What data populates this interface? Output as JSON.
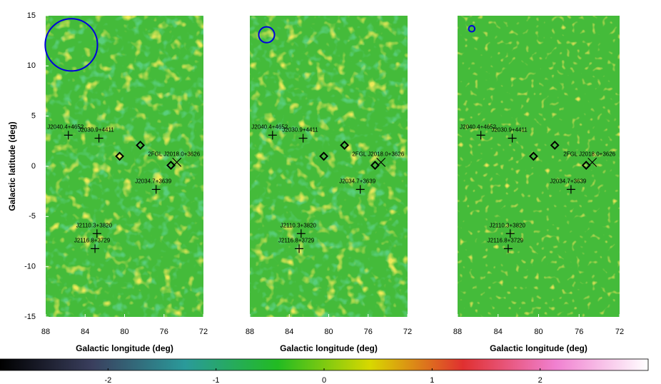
{
  "chart_data": [
    {
      "type": "map",
      "xlabel": "Galactic longitude (deg)",
      "ylabel": "Galactic latitude (deg)",
      "xlim": [
        88,
        72
      ],
      "ylim": [
        -15,
        15
      ],
      "xticks": [
        88,
        84,
        80,
        76,
        72
      ],
      "yticks": [
        -15,
        -10,
        -5,
        0,
        5,
        10,
        15
      ],
      "beam": {
        "l": 85.4,
        "b": 12.1,
        "radius": 2.65,
        "color": "#0000dd"
      },
      "sources": [
        {
          "name": "J2040.4+4652",
          "l": 85.7,
          "b": 3.1,
          "marker": "plus"
        },
        {
          "name": "J2030.9+4411",
          "l": 82.6,
          "b": 2.8,
          "marker": "plus"
        },
        {
          "l": 80.5,
          "b": 1.0,
          "marker": "diamond"
        },
        {
          "l": 78.4,
          "b": 2.1,
          "marker": "diamond"
        },
        {
          "l": 75.3,
          "b": 0.1,
          "marker": "diamond"
        },
        {
          "name": "2FGL J2018.0+3626",
          "l": 74.7,
          "b": 0.4,
          "marker": "x"
        },
        {
          "name": "J2034.7+3639",
          "l": 76.8,
          "b": -2.3,
          "marker": "plus"
        },
        {
          "name": "J2110.3+3820",
          "l": 82.8,
          "b": -6.7,
          "marker": "plus"
        },
        {
          "name": "J2116.8+3729",
          "l": 83.0,
          "b": -8.2,
          "marker": "plus"
        }
      ]
    },
    {
      "type": "map",
      "xlabel": "Galactic longitude (deg)",
      "xlim": [
        88,
        72
      ],
      "xticks": [
        88,
        84,
        80,
        76,
        72
      ],
      "ylim": [
        -15,
        15
      ],
      "beam": {
        "l": 86.3,
        "b": 13.1,
        "radius": 0.8,
        "color": "#0000dd"
      },
      "sources": [
        {
          "name": "J2040.4+4652",
          "l": 85.7,
          "b": 3.1,
          "marker": "plus"
        },
        {
          "name": "J2030.9+4411",
          "l": 82.6,
          "b": 2.8,
          "marker": "plus"
        },
        {
          "l": 80.5,
          "b": 1.0,
          "marker": "diamond"
        },
        {
          "l": 78.4,
          "b": 2.1,
          "marker": "diamond"
        },
        {
          "l": 75.3,
          "b": 0.1,
          "marker": "diamond"
        },
        {
          "name": "2FGL J2018.0+3626",
          "l": 74.7,
          "b": 0.4,
          "marker": "x"
        },
        {
          "name": "J2034.7+3639",
          "l": 76.8,
          "b": -2.3,
          "marker": "plus"
        },
        {
          "name": "J2110.3+3820",
          "l": 82.8,
          "b": -6.7,
          "marker": "plus"
        },
        {
          "name": "J2116.8+3729",
          "l": 83.0,
          "b": -8.2,
          "marker": "plus"
        }
      ]
    },
    {
      "type": "map",
      "xlabel": "Galactic longitude (deg)",
      "xlim": [
        88,
        72
      ],
      "xticks": [
        88,
        84,
        80,
        76,
        72
      ],
      "ylim": [
        -15,
        15
      ],
      "beam": {
        "l": 86.6,
        "b": 13.7,
        "radius": 0.3,
        "color": "#0000dd"
      },
      "sources": [
        {
          "name": "J2040.4+4652",
          "l": 85.7,
          "b": 3.1,
          "marker": "plus"
        },
        {
          "name": "J2030.9+4411",
          "l": 82.6,
          "b": 2.8,
          "marker": "plus"
        },
        {
          "l": 80.5,
          "b": 1.0,
          "marker": "diamond"
        },
        {
          "l": 78.4,
          "b": 2.1,
          "marker": "diamond"
        },
        {
          "l": 75.3,
          "b": 0.1,
          "marker": "diamond"
        },
        {
          "name": "2FGL J2018.0+3626",
          "l": 74.7,
          "b": 0.4,
          "marker": "x"
        },
        {
          "name": "J2034.7+3639",
          "l": 76.8,
          "b": -2.3,
          "marker": "plus"
        },
        {
          "name": "J2110.3+3820",
          "l": 82.8,
          "b": -6.7,
          "marker": "plus"
        },
        {
          "name": "J2116.8+3729",
          "l": 83.0,
          "b": -8.2,
          "marker": "plus"
        }
      ]
    },
    {
      "type": "colorbar",
      "clim": [
        -3,
        3
      ],
      "ticks": [
        -2,
        -1,
        0,
        1,
        2
      ],
      "colors": [
        "#000000",
        "#3a3f5e",
        "#2a9a9a",
        "#22bb22",
        "#d8d800",
        "#e03030",
        "#f080d0",
        "#ffffff"
      ]
    }
  ]
}
